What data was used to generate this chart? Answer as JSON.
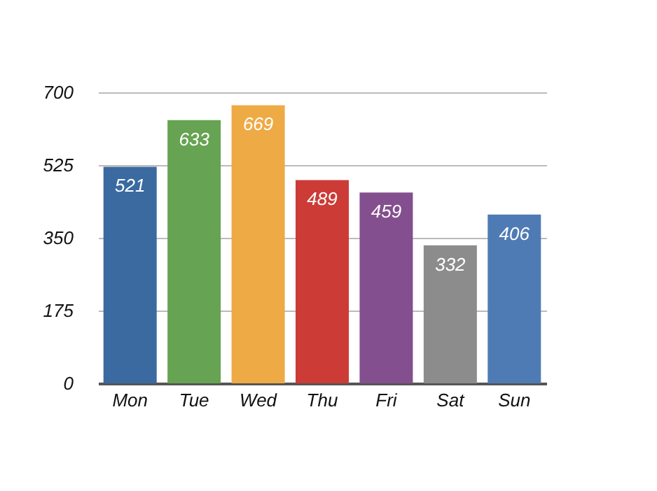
{
  "chart_data": {
    "type": "bar",
    "categories": [
      "Mon",
      "Tue",
      "Wed",
      "Thu",
      "Fri",
      "Sat",
      "Sun"
    ],
    "values": [
      521,
      633,
      669,
      489,
      459,
      332,
      406
    ],
    "colors": [
      "#3a6aa0",
      "#66a352",
      "#eeaa44",
      "#cc3b36",
      "#844f8e",
      "#8c8c8c",
      "#4f7bb5"
    ],
    "ylim": [
      0,
      700
    ],
    "yticks": [
      0,
      175,
      350,
      525,
      700
    ],
    "grid": "y",
    "data_labels": true,
    "legend": false
  }
}
